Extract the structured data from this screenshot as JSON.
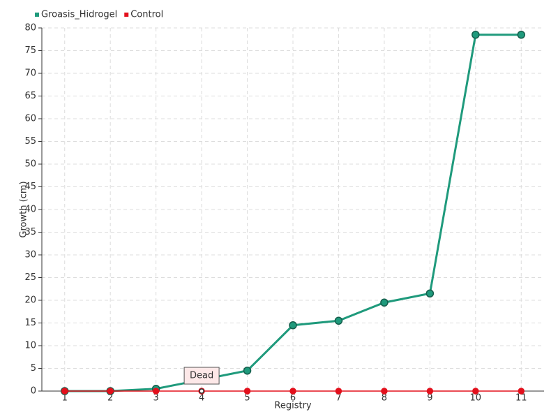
{
  "chart_data": {
    "type": "line",
    "x_label": "Registry",
    "y_label": "Growth (cm)",
    "categories": [
      "1",
      "2",
      "3",
      "4",
      "5",
      "6",
      "7",
      "8",
      "9",
      "10",
      "11"
    ],
    "series": [
      {
        "name": "Groasis_Hidrogel",
        "color": "#1f9a7c",
        "values": [
          0,
          0,
          0.5,
          2.5,
          4.5,
          14.5,
          15.5,
          19.5,
          21.5,
          78.5,
          78.5
        ]
      },
      {
        "name": "Control",
        "color": "#e3101c",
        "values": [
          0,
          0,
          0,
          0,
          0,
          0,
          0,
          0,
          0,
          0,
          0
        ]
      }
    ],
    "ylim": [
      0,
      80
    ],
    "yticks": [
      0,
      5,
      10,
      15,
      20,
      25,
      30,
      35,
      40,
      45,
      50,
      55,
      60,
      65,
      70,
      75,
      80
    ],
    "grid": true,
    "legend": "top-left",
    "annotations": [
      {
        "text": "Dead",
        "series": "Control",
        "category": "4"
      }
    ]
  }
}
